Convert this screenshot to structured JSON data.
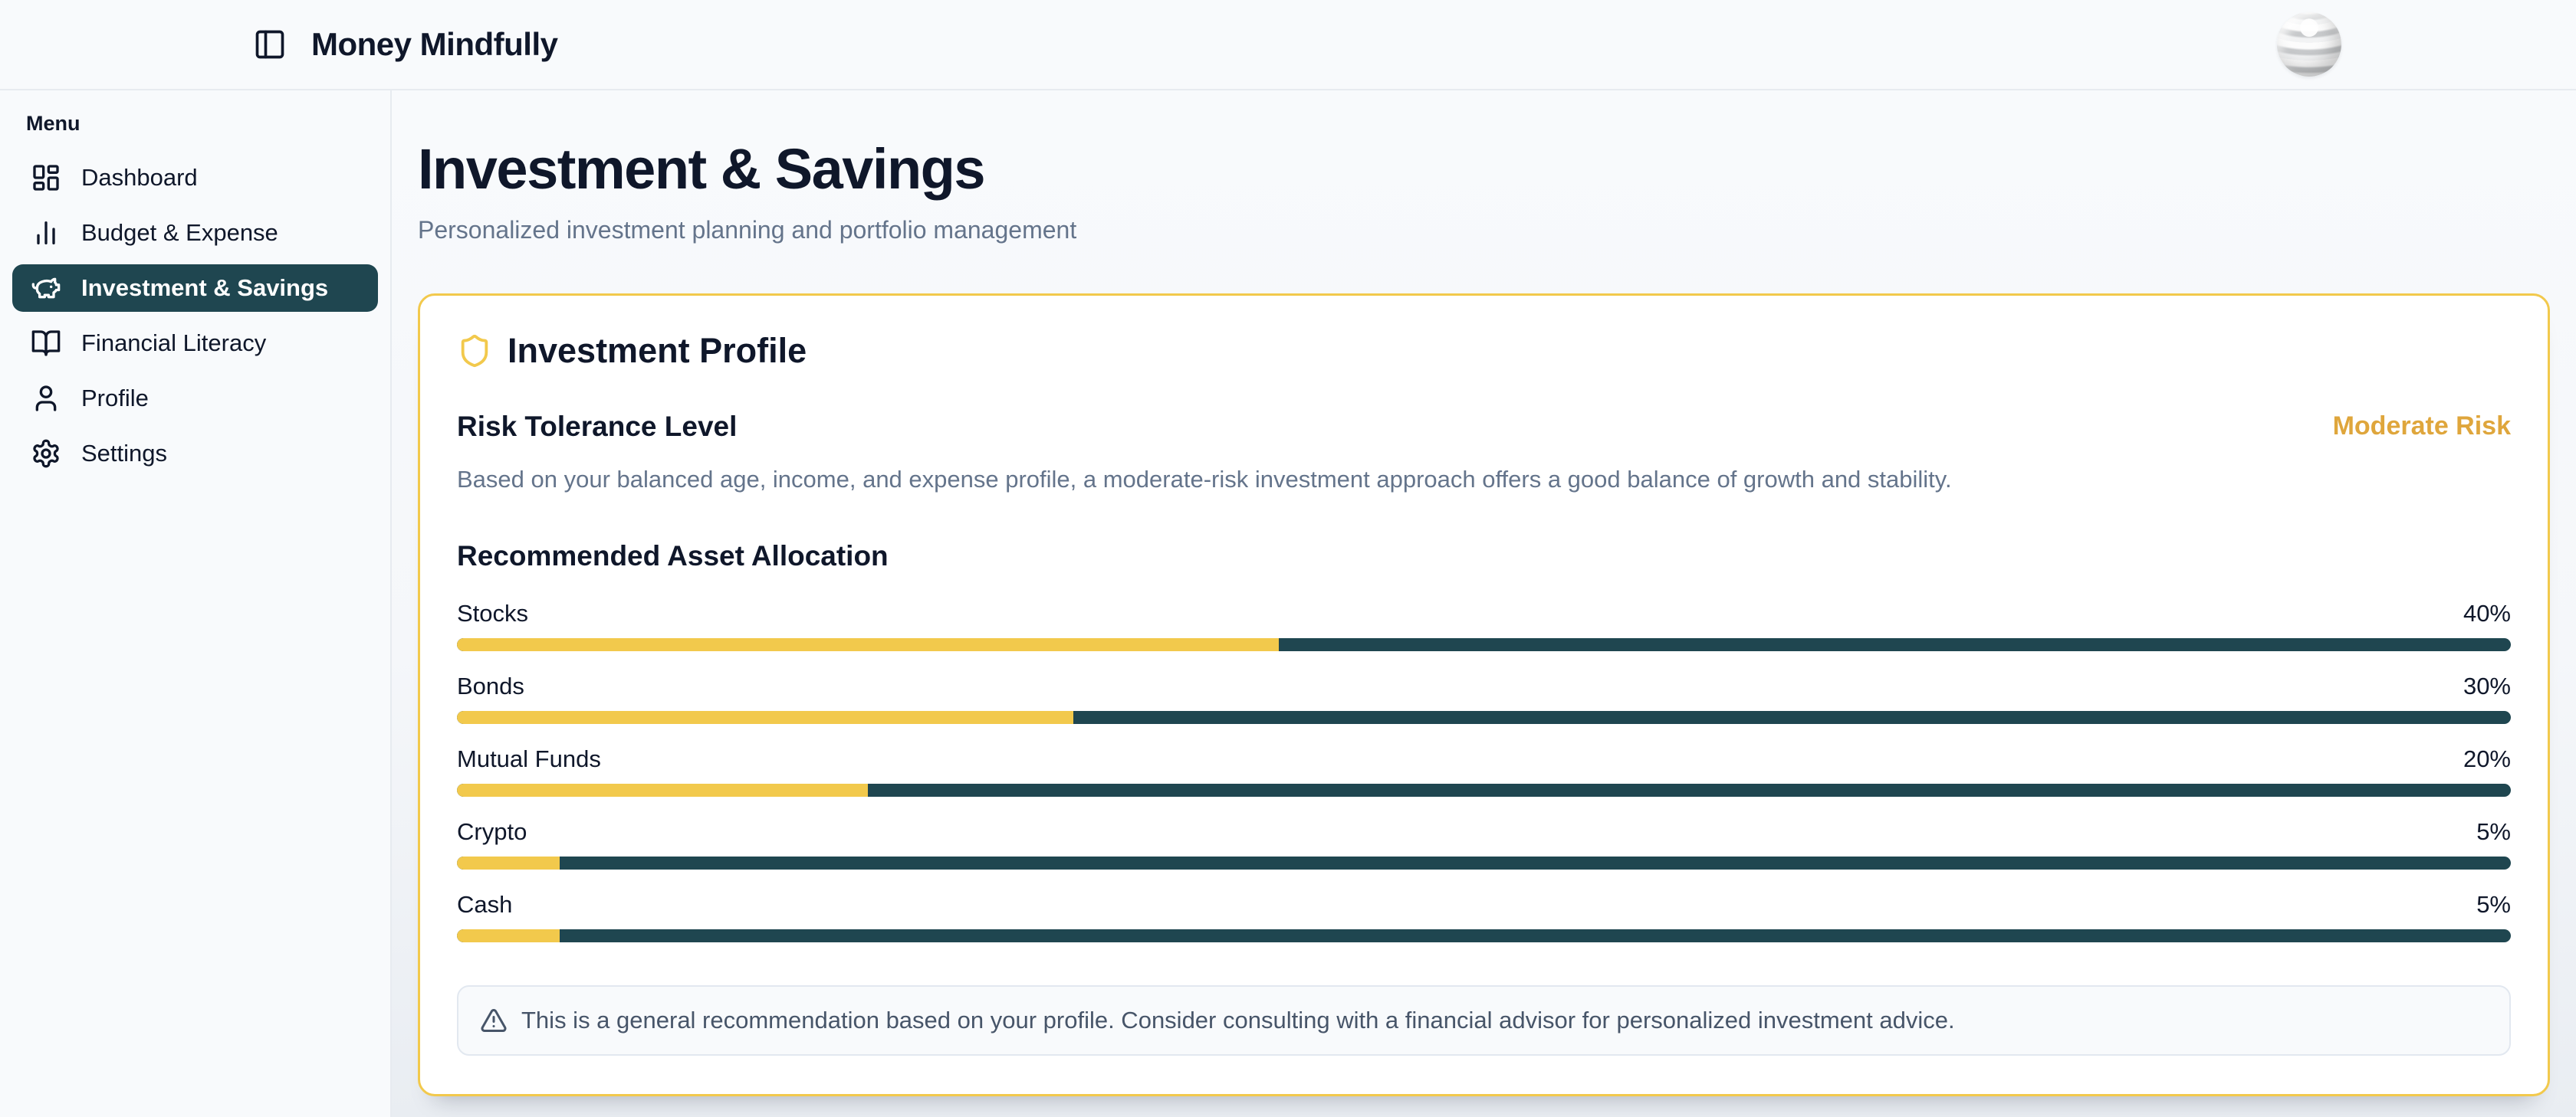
{
  "header": {
    "app_title": "Money Mindfully"
  },
  "sidebar": {
    "section_label": "Menu",
    "items": [
      {
        "label": "Dashboard",
        "icon": "dashboard-icon",
        "active": false
      },
      {
        "label": "Budget & Expense",
        "icon": "bar-chart-icon",
        "active": false
      },
      {
        "label": "Investment & Savings",
        "icon": "piggy-bank-icon",
        "active": true
      },
      {
        "label": "Financial Literacy",
        "icon": "book-open-icon",
        "active": false
      },
      {
        "label": "Profile",
        "icon": "user-icon",
        "active": false
      },
      {
        "label": "Settings",
        "icon": "gear-icon",
        "active": false
      }
    ]
  },
  "page": {
    "title": "Investment & Savings",
    "subtitle": "Personalized investment planning and portfolio management"
  },
  "profile_card": {
    "title": "Investment Profile",
    "icon": "shield-icon",
    "risk_heading": "Risk Tolerance Level",
    "risk_badge": "Moderate Risk",
    "risk_description": "Based on your balanced age, income, and expense profile, a moderate-risk investment approach offers a good balance of growth and stability.",
    "allocation_heading": "Recommended Asset Allocation",
    "disclaimer": "This is a general recommendation based on your profile. Consider consulting with a financial advisor for personalized investment advice."
  },
  "chart_data": {
    "type": "bar",
    "title": "Recommended Asset Allocation",
    "categories": [
      "Stocks",
      "Bonds",
      "Mutual Funds",
      "Crypto",
      "Cash"
    ],
    "values": [
      40,
      30,
      20,
      5,
      5
    ],
    "unit": "%",
    "value_labels": [
      "40%",
      "30%",
      "20%",
      "5%",
      "5%"
    ],
    "xlim": [
      0,
      100
    ],
    "orientation": "horizontal",
    "fill_color": "#f2c94c",
    "track_color": "#1f4650"
  },
  "colors": {
    "accent_yellow": "#f2c94c",
    "accent_gold_text": "#dfa63c",
    "brand_teal": "#1f4650",
    "text_dark": "#0f172a",
    "text_gray": "#64748b",
    "border_gray": "#e2e8f0",
    "background": "#f8fafc"
  }
}
